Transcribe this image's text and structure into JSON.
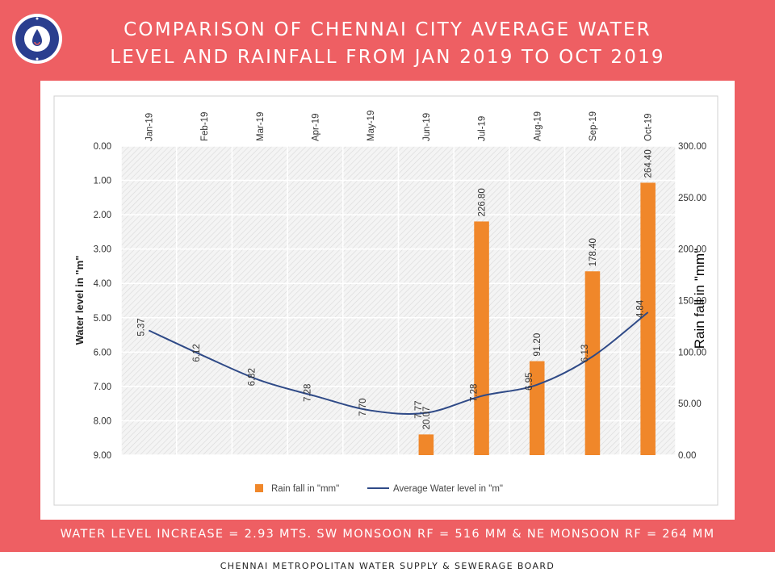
{
  "header": {
    "title_line1": "COMPARISON OF CHENNAI CITY AVERAGE WATER",
    "title_line2": "LEVEL AND RAINFALL FROM JAN 2019 TO OCT 2019"
  },
  "footer": {
    "summary": "WATER LEVEL INCREASE = 2.93 MTS. SW MONSOON RF = 516 MM & NE MONSOON RF = 264 MM",
    "organization": "CHENNAI METROPOLITAN WATER SUPPLY & SEWERAGE BOARD"
  },
  "colors": {
    "background": "#ee5f63",
    "bar": "#f0872a",
    "line": "#2f4a87"
  },
  "chart_data": {
    "type": "bar",
    "categories": [
      "Jan-19",
      "Feb-19",
      "Mar-19",
      "Apr-19",
      "May-19",
      "Jun-19",
      "Jul-19",
      "Aug-19",
      "Sep-19",
      "Oct-19"
    ],
    "series": [
      {
        "name": "Rain fall in \"mm\"",
        "type": "bar",
        "axis": "right",
        "values": [
          null,
          null,
          null,
          null,
          null,
          20.07,
          226.8,
          91.2,
          178.4,
          264.4
        ],
        "labels": [
          "",
          "",
          "",
          "",
          "",
          "20.07",
          "226.80",
          "91.20",
          "178.40",
          "264.40"
        ]
      },
      {
        "name": "Average Water level in \"m\"",
        "type": "line",
        "axis": "left",
        "values": [
          5.37,
          6.12,
          6.82,
          7.28,
          7.7,
          7.77,
          7.28,
          6.95,
          6.13,
          4.84
        ],
        "labels": [
          "5.37",
          "6.12",
          "6.82",
          "7.28",
          "7.70",
          "7.77",
          "7.28",
          "6.95",
          "6.13",
          "4.84"
        ]
      }
    ],
    "left_axis": {
      "label": "Water level in \"m\"",
      "range": [
        0,
        9
      ],
      "inverted": true,
      "ticks": [
        "0.00",
        "1.00",
        "2.00",
        "3.00",
        "4.00",
        "5.00",
        "6.00",
        "7.00",
        "8.00",
        "9.00"
      ]
    },
    "right_axis": {
      "label": "Rain fall in \"mm\"",
      "range": [
        0,
        300
      ],
      "ticks": [
        "0.00",
        "50.00",
        "100.00",
        "150.00",
        "200.00",
        "250.00",
        "300.00"
      ]
    },
    "x_axis_position": "top",
    "legend": {
      "position": "bottom",
      "entries": [
        "Rain fall in \"mm\"",
        "Average Water level in \"m\""
      ]
    },
    "grid": true
  }
}
